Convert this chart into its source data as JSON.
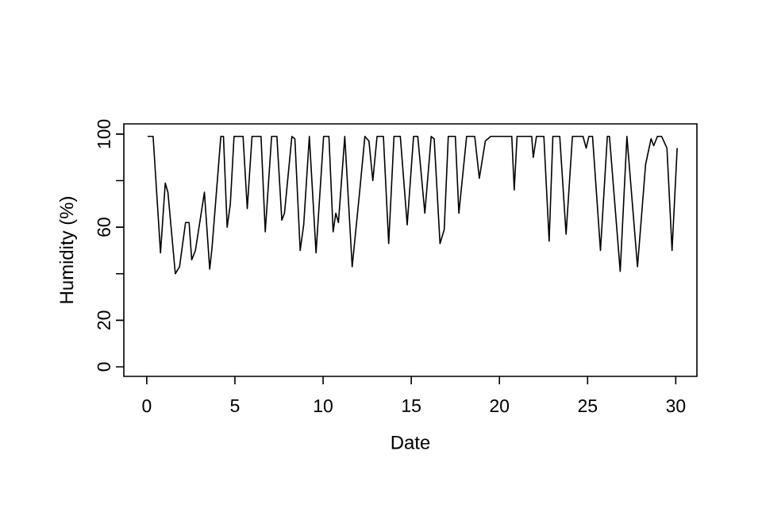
{
  "chart_data": {
    "type": "line",
    "xlabel": "Date",
    "ylabel": "Humidity (%)",
    "x": [
      0.05,
      0.36,
      0.78,
      1.05,
      1.2,
      1.62,
      1.86,
      2.2,
      2.4,
      2.55,
      2.76,
      3.27,
      3.57,
      3.7,
      4.2,
      4.35,
      4.56,
      4.74,
      4.95,
      5.46,
      5.7,
      5.97,
      6.48,
      6.72,
      7.08,
      7.38,
      7.66,
      7.81,
      8.23,
      8.4,
      8.7,
      8.9,
      9.22,
      9.6,
      10.03,
      10.33,
      10.57,
      10.72,
      10.87,
      11.23,
      11.65,
      12.07,
      12.37,
      12.6,
      12.82,
      13.06,
      13.42,
      13.72,
      14.02,
      14.38,
      14.77,
      15.13,
      15.37,
      15.77,
      16.13,
      16.3,
      16.63,
      16.87,
      17.1,
      17.5,
      17.7,
      18.14,
      18.6,
      18.86,
      19.2,
      19.5,
      20.7,
      20.84,
      21.0,
      21.83,
      21.92,
      22.1,
      22.52,
      22.82,
      23.03,
      23.42,
      23.78,
      24.14,
      24.74,
      24.92,
      25.07,
      25.28,
      25.73,
      26.12,
      26.24,
      26.85,
      27.23,
      27.83,
      28.29,
      28.6,
      28.75,
      28.96,
      29.2,
      29.5,
      29.79,
      30.08
    ],
    "values": [
      99,
      99,
      49,
      79,
      75,
      40,
      43,
      62,
      62,
      46,
      50,
      75,
      42,
      51,
      99,
      99,
      60,
      70,
      99,
      99,
      68,
      99,
      99,
      58,
      99,
      99,
      63,
      66,
      99,
      98,
      50,
      61,
      99,
      49,
      99,
      99,
      58,
      66,
      62,
      99,
      43,
      75,
      99,
      97,
      80,
      99,
      99,
      53,
      99,
      99,
      61,
      99,
      99,
      66,
      99,
      98,
      53,
      59,
      99,
      99,
      66,
      99,
      99,
      81,
      97,
      99,
      99,
      76,
      99,
      99,
      90,
      99,
      99,
      54,
      99,
      99,
      57,
      99,
      99,
      94,
      99,
      99,
      50,
      99,
      99,
      41,
      99,
      43,
      87,
      98,
      95,
      99,
      99,
      94,
      50,
      94
    ],
    "color": "#000000",
    "line_style": "solid",
    "xlim": [
      -1.3,
      31.2
    ],
    "ylim": [
      -4.1,
      104.4
    ],
    "xticks": [
      0,
      5,
      10,
      15,
      20,
      25,
      30
    ],
    "yticks": [
      0,
      20,
      {
        "value": 40,
        "label": null
      },
      60,
      {
        "value": 80,
        "label": null
      },
      100
    ]
  }
}
